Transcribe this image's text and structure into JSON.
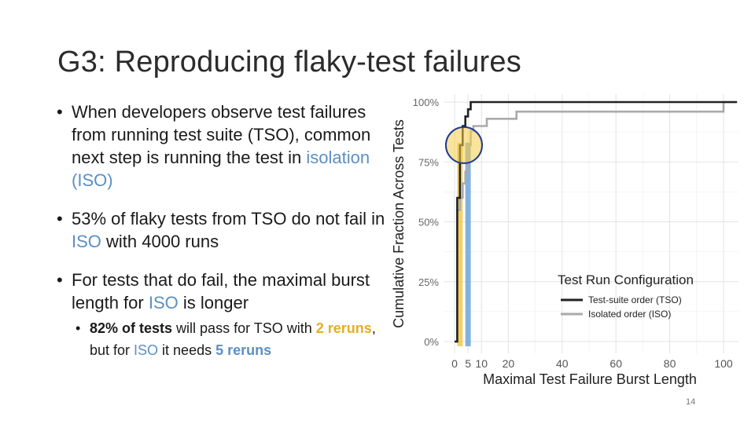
{
  "slide": {
    "title": "G3: Reproducing flaky-test failures",
    "page_number": "14"
  },
  "bullets": {
    "b1_a": "When developers observe test failures from running test suite (TSO), common next step is running the test in ",
    "b1_iso": "isolation (ISO)",
    "b2_a": "53% of flaky tests from TSO do not fail in ",
    "b2_iso": "ISO",
    "b2_b": " with 4000 runs",
    "b3_a": "For tests that do fail, the maximal burst length for ",
    "b3_iso": "ISO",
    "b3_b": " is longer",
    "s1_bold": "82% of tests",
    "s1_a": " will pass for TSO with ",
    "s1_gold": "2 reruns",
    "s1_b": ", but for ",
    "s1_iso": "ISO",
    "s1_c": " it needs ",
    "s1_blue": "5 reruns"
  },
  "chart_data": {
    "type": "line",
    "xlabel": "Maximal Test Failure Burst Length",
    "ylabel": "Cumulative Fraction Across Tests",
    "xlim": [
      0,
      105
    ],
    "ylim": [
      0,
      1
    ],
    "x_ticks": [
      0,
      5,
      10,
      20,
      40,
      60,
      80,
      100
    ],
    "y_ticks": [
      0,
      0.25,
      0.5,
      0.75,
      1
    ],
    "y_tick_labels": [
      "0%",
      "25%",
      "50%",
      "75%",
      "100%"
    ],
    "grid": true,
    "legend_title": "Test Run Configuration",
    "legend_position": "bottom-right",
    "series": [
      {
        "name": "Test-suite order (TSO)",
        "color": "#222222",
        "points": [
          [
            0,
            0
          ],
          [
            1,
            0
          ],
          [
            1,
            0.6
          ],
          [
            2,
            0.6
          ],
          [
            2,
            0.82
          ],
          [
            3,
            0.82
          ],
          [
            3,
            0.9
          ],
          [
            4,
            0.9
          ],
          [
            4,
            0.94
          ],
          [
            5,
            0.94
          ],
          [
            5,
            0.97
          ],
          [
            6,
            0.97
          ],
          [
            6,
            1
          ],
          [
            105,
            1
          ]
        ]
      },
      {
        "name": "Isolated order (ISO)",
        "color": "#aaaaaa",
        "points": [
          [
            0,
            0
          ],
          [
            1,
            0
          ],
          [
            1,
            0.55
          ],
          [
            2,
            0.55
          ],
          [
            2,
            0.6
          ],
          [
            3,
            0.6
          ],
          [
            3,
            0.66
          ],
          [
            4,
            0.66
          ],
          [
            4,
            0.71
          ],
          [
            5,
            0.71
          ],
          [
            5,
            0.82
          ],
          [
            6,
            0.82
          ],
          [
            6,
            0.88
          ],
          [
            7,
            0.88
          ],
          [
            7,
            0.9
          ],
          [
            12,
            0.9
          ],
          [
            12,
            0.93
          ],
          [
            23,
            0.93
          ],
          [
            23,
            0.96
          ],
          [
            100,
            0.96
          ],
          [
            100,
            1
          ],
          [
            105,
            1
          ]
        ]
      }
    ],
    "highlights": [
      {
        "x": 2,
        "color": "#f0c230"
      },
      {
        "x": 5,
        "color": "#5b9bd5"
      }
    ],
    "highlight_circle": {
      "center": [
        3.5,
        0.82
      ],
      "fill": "#f6ce4a",
      "stroke": "#1f3a93"
    }
  }
}
